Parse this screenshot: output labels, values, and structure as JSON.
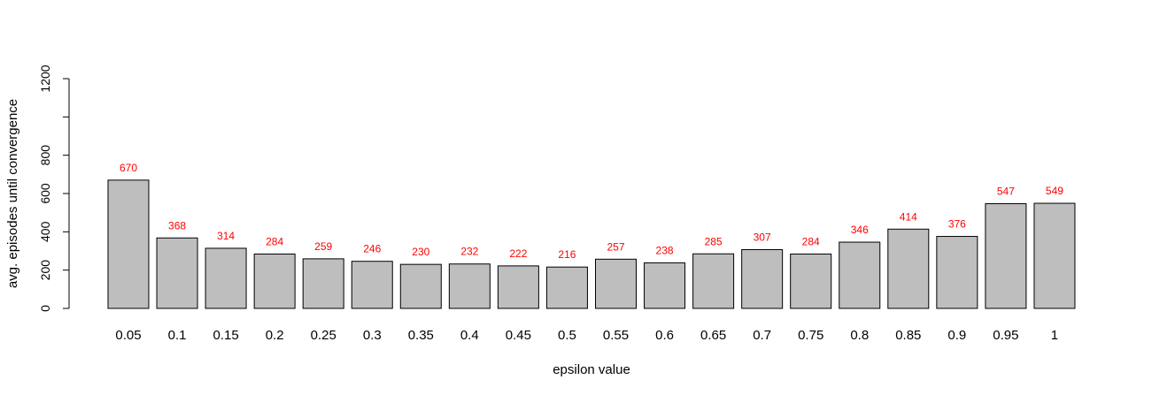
{
  "chart_data": {
    "type": "bar",
    "categories": [
      "0.05",
      "0.1",
      "0.15",
      "0.2",
      "0.25",
      "0.3",
      "0.35",
      "0.4",
      "0.45",
      "0.5",
      "0.55",
      "0.6",
      "0.65",
      "0.7",
      "0.75",
      "0.8",
      "0.85",
      "0.9",
      "0.95",
      "1"
    ],
    "values": [
      670,
      368,
      314,
      284,
      259,
      246,
      230,
      232,
      222,
      216,
      257,
      238,
      285,
      307,
      284,
      346,
      414,
      376,
      547,
      549
    ],
    "data_labels": [
      "670",
      "368",
      "314",
      "284",
      "259",
      "246",
      "230",
      "232",
      "222",
      "216",
      "257",
      "238",
      "285",
      "307",
      "284",
      "346",
      "414",
      "376",
      "547",
      "549"
    ],
    "title": "",
    "xlabel": "epsilon value",
    "ylabel": "avg. episodes until convergence",
    "ylim": [
      0,
      1200
    ],
    "yticks": [
      0,
      200,
      400,
      600,
      800,
      1000,
      1200
    ],
    "ytick_labels": [
      "0",
      "200",
      "400",
      "600",
      "800",
      "",
      "1200"
    ],
    "bar_color": "#bebebe",
    "bar_border_color": "#000000",
    "label_color": "#ff0000",
    "grid": false,
    "legend": "none"
  }
}
